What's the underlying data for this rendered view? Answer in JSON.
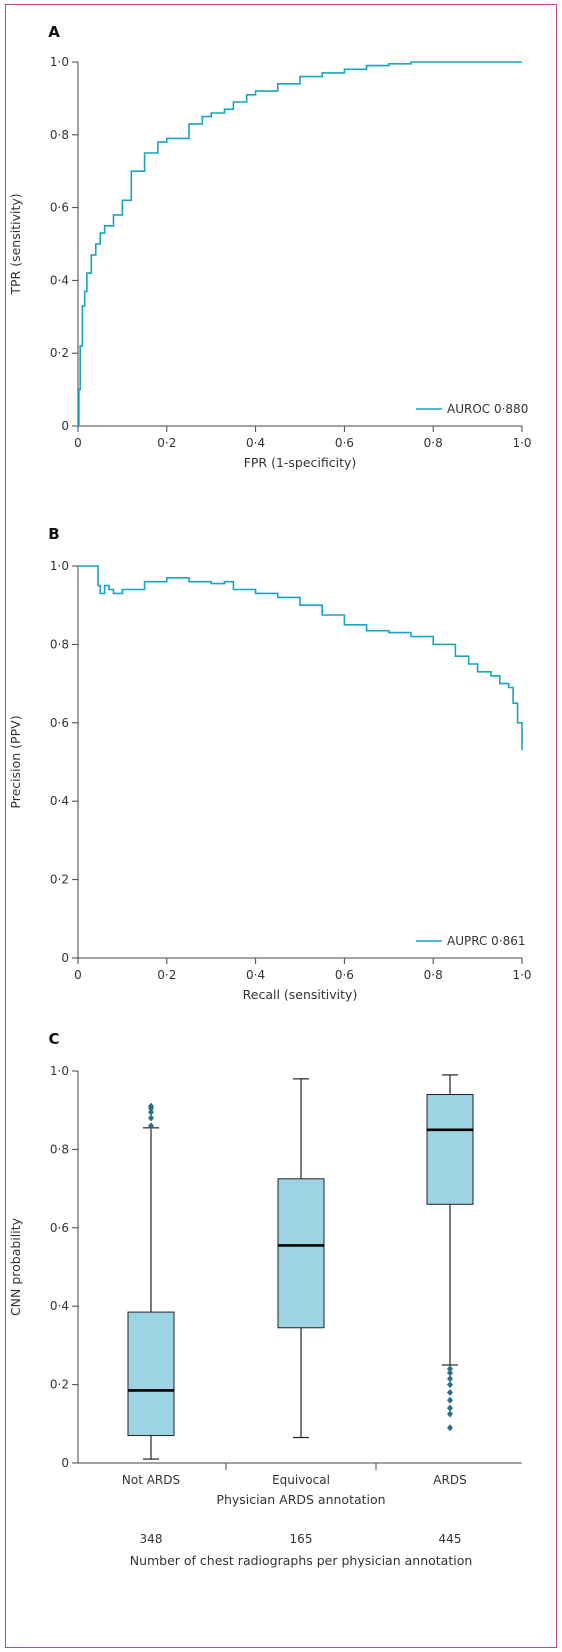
{
  "colors": {
    "curve": "#1aa3c2",
    "box_fill": "#9dd4e3",
    "axis": "#444444",
    "outlier": "#2a6f86",
    "frame": "#c0447f"
  },
  "chart_data": [
    {
      "panel_label": "A",
      "type": "line",
      "xlabel": "FPR (1-specificity)",
      "ylabel": "TPR (sensitivity)",
      "xlim": [
        0,
        1
      ],
      "ylim": [
        0,
        1
      ],
      "x_ticks": [
        "0",
        "0·2",
        "0·4",
        "0·6",
        "0·8",
        "1·0"
      ],
      "y_ticks": [
        "0",
        "0·2",
        "0·4",
        "0·6",
        "0·8",
        "1·0"
      ],
      "legend": "top-none",
      "series": [
        {
          "name": "AUROC 0·880",
          "x": [
            0,
            0.002,
            0.005,
            0.01,
            0.015,
            0.02,
            0.03,
            0.04,
            0.05,
            0.06,
            0.08,
            0.1,
            0.12,
            0.15,
            0.18,
            0.2,
            0.25,
            0.28,
            0.3,
            0.33,
            0.35,
            0.38,
            0.4,
            0.45,
            0.5,
            0.55,
            0.6,
            0.65,
            0.7,
            0.75,
            0.8,
            1.0
          ],
          "y": [
            0,
            0.1,
            0.22,
            0.33,
            0.37,
            0.42,
            0.47,
            0.5,
            0.53,
            0.55,
            0.58,
            0.62,
            0.7,
            0.75,
            0.78,
            0.79,
            0.83,
            0.85,
            0.86,
            0.87,
            0.89,
            0.91,
            0.92,
            0.94,
            0.96,
            0.97,
            0.98,
            0.99,
            0.995,
            1.0,
            1.0,
            1.0
          ]
        }
      ]
    },
    {
      "panel_label": "B",
      "type": "line",
      "xlabel": "Recall (sensitivity)",
      "ylabel": "Precision (PPV)",
      "xlim": [
        0,
        1
      ],
      "ylim": [
        0,
        1
      ],
      "x_ticks": [
        "0",
        "0·2",
        "0·4",
        "0·6",
        "0·8",
        "1·0"
      ],
      "y_ticks": [
        "0",
        "0·2",
        "0·4",
        "0·6",
        "0·8",
        "1·0"
      ],
      "series": [
        {
          "name": "AUPRC 0·861",
          "x": [
            0,
            0.04,
            0.045,
            0.05,
            0.06,
            0.07,
            0.08,
            0.1,
            0.15,
            0.2,
            0.25,
            0.3,
            0.33,
            0.35,
            0.4,
            0.45,
            0.5,
            0.55,
            0.6,
            0.65,
            0.7,
            0.75,
            0.8,
            0.85,
            0.88,
            0.9,
            0.93,
            0.95,
            0.97,
            0.98,
            0.99,
            1.0
          ],
          "y": [
            1.0,
            1.0,
            0.95,
            0.93,
            0.95,
            0.94,
            0.93,
            0.94,
            0.96,
            0.97,
            0.96,
            0.955,
            0.96,
            0.94,
            0.93,
            0.92,
            0.9,
            0.875,
            0.85,
            0.835,
            0.83,
            0.82,
            0.8,
            0.77,
            0.75,
            0.73,
            0.72,
            0.7,
            0.69,
            0.65,
            0.6,
            0.53
          ]
        }
      ]
    },
    {
      "panel_label": "C",
      "type": "box",
      "xlabel": "Physician ARDS annotation",
      "ylabel": "CNN probability",
      "ylim": [
        0,
        1
      ],
      "y_ticks": [
        "0",
        "0·2",
        "0·4",
        "0·6",
        "0·8",
        "1·0"
      ],
      "categories": [
        "Not ARDS",
        "Equivocal",
        "ARDS"
      ],
      "boxes": [
        {
          "category": "Not ARDS",
          "whisker_low": 0.01,
          "q1": 0.07,
          "median": 0.185,
          "q3": 0.385,
          "whisker_high": 0.855,
          "outliers": [
            0.86,
            0.88,
            0.895,
            0.905,
            0.91
          ]
        },
        {
          "category": "Equivocal",
          "whisker_low": 0.065,
          "q1": 0.345,
          "median": 0.555,
          "q3": 0.725,
          "whisker_high": 0.98,
          "outliers": []
        },
        {
          "category": "ARDS",
          "whisker_low": 0.25,
          "q1": 0.66,
          "median": 0.85,
          "q3": 0.94,
          "whisker_high": 0.99,
          "outliers": [
            0.09,
            0.125,
            0.14,
            0.16,
            0.18,
            0.2,
            0.215,
            0.23,
            0.24
          ]
        }
      ],
      "counts_title": "Number of chest radiographs per physician annotation",
      "counts": [
        "348",
        "165",
        "445"
      ]
    }
  ]
}
